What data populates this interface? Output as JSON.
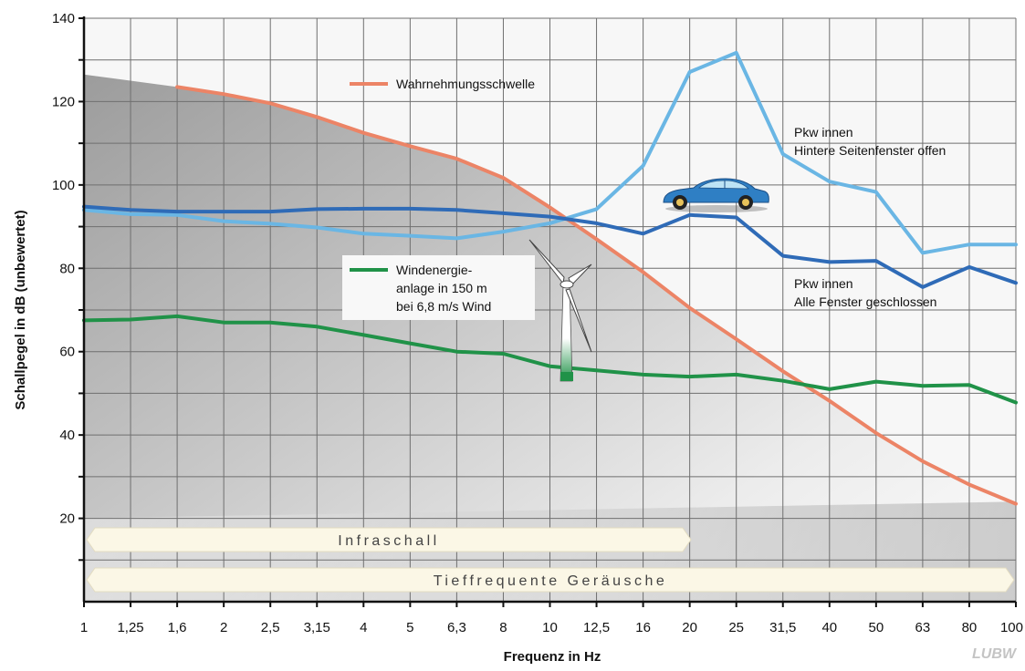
{
  "chart_data": {
    "type": "line",
    "xlabel": "Frequenz in Hz",
    "ylabel": "Schallpegel in dB (unbewertet)",
    "categories": [
      "1",
      "1,25",
      "1,6",
      "2",
      "2,5",
      "3,15",
      "4",
      "5",
      "6,3",
      "8",
      "10",
      "12,5",
      "16",
      "20",
      "25",
      "31,5",
      "40",
      "50",
      "63",
      "80",
      "100"
    ],
    "ylim": [
      0,
      140
    ],
    "yticks": [
      20,
      40,
      60,
      80,
      100,
      120,
      140
    ],
    "grid": true,
    "legend_placement": "inline annotations",
    "series": [
      {
        "name": "Wahrnehmungsschwelle",
        "color": "#ec8466",
        "values": [
          null,
          null,
          123.5,
          121.8,
          119.6,
          116.3,
          112.5,
          109.3,
          106.3,
          101.7,
          94.6,
          87.0,
          79.1,
          70.5,
          63.0,
          55.3,
          48.2,
          40.5,
          33.7,
          28.1,
          23.5
        ]
      },
      {
        "name": "Pkw innen Hintere Seitenfenster offen",
        "color": "#6ab6e4",
        "values": [
          94.0,
          93.0,
          92.8,
          91.3,
          90.7,
          89.8,
          88.3,
          87.8,
          87.2,
          88.8,
          90.8,
          94.2,
          104.6,
          127.1,
          131.7,
          107.4,
          100.8,
          98.3,
          83.7,
          85.7,
          85.7
        ]
      },
      {
        "name": "Pkw innen Alle Fenster geschlossen",
        "color": "#2f6bb7",
        "values": [
          94.8,
          94.0,
          93.6,
          93.6,
          93.6,
          94.2,
          94.3,
          94.3,
          94.0,
          93.2,
          92.4,
          90.8,
          88.3,
          92.8,
          92.2,
          83.0,
          81.5,
          81.8,
          75.5,
          80.3,
          76.5
        ]
      },
      {
        "name": "Windenergie-anlage in 150 m bei 6,8 m/s Wind",
        "color": "#209248",
        "values": [
          67.5,
          67.7,
          68.5,
          67.0,
          67.0,
          66.0,
          64.0,
          62.0,
          60.0,
          59.5,
          56.5,
          55.5,
          54.5,
          54.0,
          54.5,
          53.0,
          51.0,
          52.8,
          51.8,
          52.0,
          47.8
        ]
      }
    ],
    "annotations": {
      "threshold": "Wahrnehmungsschwelle",
      "car_open_1": "Pkw innen",
      "car_open_2": "Hintere Seitenfenster offen",
      "car_closed_1": "Pkw innen",
      "car_closed_2": "Alle Fenster geschlossen",
      "wind_1": "Windenergie-",
      "wind_2": "anlage in 150 m",
      "wind_3": "bei 6,8 m/s Wind"
    },
    "bands": {
      "infraschall": "Infraschall",
      "tieffrequent": "Tieffrequente Geräusche"
    },
    "logo": "LUBW"
  }
}
